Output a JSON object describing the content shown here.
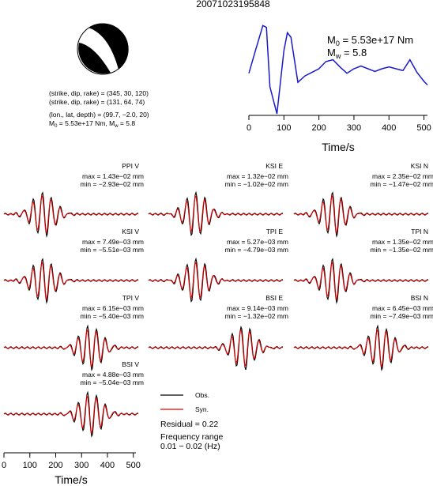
{
  "title": "20071023195848",
  "mechanism": {
    "line1": "(strike, dip, rake) = (345, 30, 120)",
    "line2": "(strike, dip, rake) = (131, 64, 74)",
    "line3": "(lon., lat, depth) = (99.7, −2.0, 20)",
    "line4_m0": "M",
    "line4_m0_sub": "0",
    "line4_m0_val": " = 5.53e+17 Nm, M",
    "line4_mw_sub": "w",
    "line4_mw_val": " = 5.8"
  },
  "stf": {
    "m0_prefix": "M",
    "m0_sub": "0",
    "m0_value": " = 5.53e+17 Nm",
    "mw_prefix": "M",
    "mw_sub": "w",
    "mw_value": " = 5.8",
    "xlabel": "Time/s",
    "xticks": [
      "0",
      "100",
      "200",
      "300",
      "400",
      "500"
    ]
  },
  "traces": [
    {
      "station": "PPI V",
      "max": "max = 1.43e−02 mm",
      "min": "min = −2.93e−02 mm"
    },
    {
      "station": "KSI E",
      "max": "max = 1.32e−02 mm",
      "min": "min = −1.02e−02 mm"
    },
    {
      "station": "KSI N",
      "max": "max = 2.35e−02 mm",
      "min": "min = −1.47e−02 mm"
    },
    {
      "station": "KSI V",
      "max": "max = 7.49e−03 mm",
      "min": "min = −5.51e−03 mm"
    },
    {
      "station": "TPI E",
      "max": "max = 5.27e−03 mm",
      "min": "min = −4.79e−03 mm"
    },
    {
      "station": "TPI N",
      "max": "max = 1.35e−02 mm",
      "min": "min = −1.35e−02 mm"
    },
    {
      "station": "TPI V",
      "max": "max = 6.15e−03 mm",
      "min": "min = −5.40e−03 mm"
    },
    {
      "station": "BSI E",
      "max": "max = 9.14e−03 mm",
      "min": "min = −1.32e−02 mm"
    },
    {
      "station": "BSI N",
      "max": "max = 6.45e−03 mm",
      "min": "min = −7.49e−03 mm"
    },
    {
      "station": "BSI V",
      "max": "max = 4.88e−03 mm",
      "min": "min = −5.04e−03 mm"
    }
  ],
  "legend": {
    "obs": "Obs.",
    "syn": "Syn.",
    "residual": "Residual = 0.22",
    "freq1": "Frequency range",
    "freq2": "0.01 − 0.02 (Hz)"
  },
  "bottom_axis": {
    "xlabel": "Time/s",
    "xticks": [
      "0",
      "100",
      "200",
      "300",
      "400",
      "500"
    ]
  },
  "colors": {
    "observed": "#000000",
    "synthetic": "#e00000",
    "stf": "#1a1acc"
  },
  "chart_data": {
    "type": "line",
    "title": "20071023195848",
    "source_time_function": {
      "xlabel": "Time/s",
      "xlim": [
        0,
        510
      ],
      "x": [
        0,
        20,
        40,
        50,
        60,
        80,
        100,
        110,
        120,
        140,
        160,
        180,
        200,
        220,
        240,
        260,
        280,
        300,
        320,
        340,
        360,
        380,
        400,
        420,
        440,
        460,
        480,
        500,
        510
      ],
      "y": [
        0.45,
        0.72,
        0.98,
        0.96,
        0.3,
        0.0,
        0.7,
        0.9,
        0.85,
        0.35,
        0.42,
        0.46,
        0.5,
        0.58,
        0.6,
        0.52,
        0.45,
        0.5,
        0.53,
        0.5,
        0.47,
        0.5,
        0.52,
        0.5,
        0.48,
        0.6,
        0.46,
        0.36,
        0.32
      ]
    },
    "waveforms": {
      "xlabel": "Time/s",
      "xlim": [
        0,
        510
      ],
      "series": [
        "Obs.",
        "Syn."
      ],
      "stations": [
        "PPI V",
        "KSI E",
        "KSI N",
        "KSI V",
        "TPI E",
        "TPI N",
        "TPI V",
        "BSI E",
        "BSI N",
        "BSI V"
      ],
      "max_mm": [
        0.0143,
        0.0132,
        0.0235,
        0.00749,
        0.00527,
        0.0135,
        0.00615,
        0.00914,
        0.00645,
        0.00488
      ],
      "min_mm": [
        -0.0293,
        -0.0102,
        -0.0147,
        -0.00551,
        -0.00479,
        -0.0135,
        -0.0054,
        -0.0132,
        -0.00749,
        -0.00504
      ]
    },
    "residual": 0.22,
    "frequency_range_hz": [
      0.01,
      0.02
    ]
  }
}
